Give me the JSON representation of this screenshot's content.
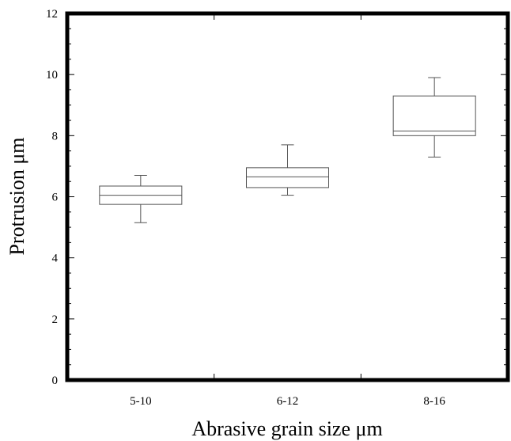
{
  "chart_data": {
    "type": "boxplot",
    "title": "",
    "xlabel": "Abrasive grain size μm",
    "ylabel": "Protrusion μm",
    "ylim": [
      0,
      12
    ],
    "y_ticks": [
      0,
      2,
      4,
      6,
      8,
      10,
      12
    ],
    "grid": false,
    "categories": [
      "5-10",
      "6-12",
      "8-16"
    ],
    "boxes": [
      {
        "category": "5-10",
        "min": 5.15,
        "q1": 5.75,
        "median": 6.05,
        "q3": 6.35,
        "max": 6.7
      },
      {
        "category": "6-12",
        "min": 6.05,
        "q1": 6.3,
        "median": 6.65,
        "q3": 6.95,
        "max": 7.7
      },
      {
        "category": "8-16",
        "min": 7.3,
        "q1": 8.0,
        "median": 8.15,
        "q3": 9.3,
        "max": 9.9
      }
    ]
  }
}
